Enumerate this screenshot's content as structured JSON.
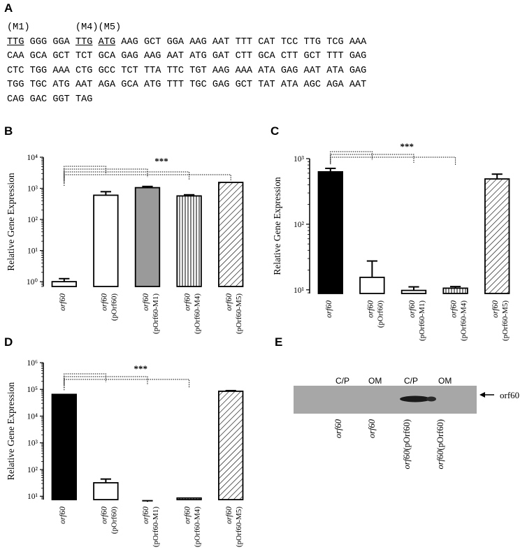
{
  "panels": {
    "a": "A",
    "b": "B",
    "c": "C",
    "d": "D",
    "e": "E"
  },
  "sequence": {
    "markers": [
      {
        "label": "(M1)",
        "codon": 0
      },
      {
        "label": "(M4)",
        "codon": 3
      },
      {
        "label": "(M5)",
        "codon": 4
      }
    ],
    "underlined_codons": [
      0,
      3,
      4
    ],
    "lines": [
      [
        "TTG",
        "GGG",
        "GGA",
        "TTG",
        "ATG",
        "AAG",
        "GCT",
        "GGA",
        "AAG",
        "AAT",
        "TTT",
        "CAT",
        "TCC",
        "TTG",
        "TCG",
        "AAA"
      ],
      [
        "CAA",
        "GCA",
        "GCT",
        "TCT",
        "GCA",
        "GAG",
        "AAG",
        "AAT",
        "ATG",
        "GAT",
        "CTT",
        "GCA",
        "CTT",
        "GCT",
        "TTT",
        "GAG"
      ],
      [
        "CTC",
        "TGG",
        "AAA",
        "CTG",
        "GCC",
        "TCT",
        "TTA",
        "TTC",
        "TGT",
        "AAG",
        "AAA",
        "ATA",
        "GAG",
        "AAT",
        "ATA",
        "GAG"
      ],
      [
        "TGG",
        "TGC",
        "ATG",
        "AAT",
        "AGA",
        "GCA",
        "ATG",
        "TTT",
        "TGC",
        "GAG",
        "GCT",
        "TAT",
        "ATA",
        "AGC",
        "AGA",
        "AAT"
      ],
      [
        "CAG",
        "GAC",
        "GGT",
        "TAG"
      ]
    ]
  },
  "chart_data": [
    {
      "panel": "B",
      "type": "bar",
      "ylabel": "Relative Gene Expression",
      "yscale": "log",
      "ylim": [
        0.7,
        10000
      ],
      "yticks": [
        1,
        10,
        100,
        1000,
        10000
      ],
      "categories": [
        {
          "strain": "orf60",
          "plasmid": ""
        },
        {
          "strain": "orf60",
          "plasmid": "(pOrf60)"
        },
        {
          "strain": "orf60",
          "plasmid": "(pOrf60-M1)"
        },
        {
          "strain": "orf60",
          "plasmid": "(pOrf60-M4)"
        },
        {
          "strain": "orf60",
          "plasmid": "(pOrf60-M5)"
        }
      ],
      "values": [
        1.0,
        600,
        1050,
        570,
        1550
      ],
      "errors": [
        0.25,
        180,
        100,
        50,
        0
      ],
      "fills": [
        "white",
        "white",
        "gray",
        "vlines",
        "hatch"
      ],
      "significance": "***",
      "brackets": [
        [
          0,
          1
        ],
        [
          0,
          2
        ],
        [
          0,
          3
        ],
        [
          0,
          4
        ]
      ]
    },
    {
      "panel": "C",
      "type": "bar",
      "ylabel": "Relative Gene Expression",
      "yscale": "log",
      "ylim": [
        8.8,
        1000
      ],
      "yticks": [
        10,
        100,
        1000
      ],
      "categories": [
        {
          "strain": "orf60",
          "plasmid": ""
        },
        {
          "strain": "orf60",
          "plasmid": "(pOrf60)"
        },
        {
          "strain": "orf60",
          "plasmid": "(pOrf60-M1)"
        },
        {
          "strain": "orf60",
          "plasmid": "(pOrf60-M4)"
        },
        {
          "strain": "orf60",
          "plasmid": "(pOrf60-M5)"
        }
      ],
      "values": [
        630,
        15.5,
        9.8,
        10.6,
        490
      ],
      "errors": [
        80,
        12,
        1.3,
        0.6,
        90
      ],
      "fills": [
        "black",
        "white",
        "white",
        "vlines",
        "hatch"
      ],
      "significance": "***",
      "brackets": [
        [
          0,
          1
        ],
        [
          0,
          2
        ],
        [
          0,
          3
        ]
      ]
    },
    {
      "panel": "D",
      "type": "bar",
      "ylabel": "Relative Gene Expression",
      "yscale": "log",
      "ylim": [
        7.5,
        1000000
      ],
      "yticks": [
        10,
        100,
        1000,
        10000,
        100000,
        1000000
      ],
      "categories": [
        {
          "strain": "orf60",
          "plasmid": ""
        },
        {
          "strain": "orf60",
          "plasmid": "(pOrf60)"
        },
        {
          "strain": "orf60",
          "plasmid": "(pOrf60-M1)"
        },
        {
          "strain": "orf60",
          "plasmid": "(pOrf60-M4)"
        },
        {
          "strain": "orf60",
          "plasmid": "(pOrf60-M5)"
        }
      ],
      "values": [
        65000,
        32,
        6.2,
        8.6,
        85000
      ],
      "errors": [
        0,
        12,
        0.6,
        0,
        5000
      ],
      "fills": [
        "black",
        "white",
        "hatchsmall",
        "vlines",
        "hatch"
      ],
      "significance": "***",
      "brackets": [
        [
          0,
          1
        ],
        [
          0,
          2
        ],
        [
          0,
          3
        ]
      ]
    }
  ],
  "blot": {
    "lane_headers": [
      "C/P",
      "OM",
      "C/P",
      "OM"
    ],
    "lane_strains": [
      "orf60",
      "orf60",
      "orf60",
      "orf60"
    ],
    "lane_plasmids": [
      "",
      "",
      "(pOrf60)",
      "(pOrf60)"
    ],
    "band_label": "orf60"
  },
  "colors": {
    "bar_gray": "#9a9a9a",
    "blot_background": "#a7a7a7",
    "band": "#1a1a1a"
  }
}
